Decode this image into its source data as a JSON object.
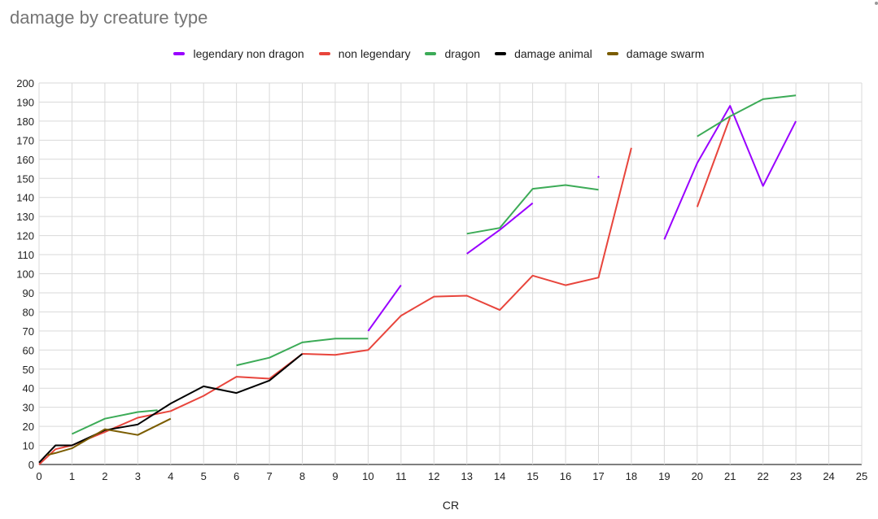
{
  "chart_data": {
    "type": "line",
    "title": "damage by creature type",
    "xlabel": "CR",
    "ylabel": "",
    "xlim": [
      0,
      25
    ],
    "ylim": [
      0,
      200
    ],
    "x_ticks": [
      0,
      1,
      2,
      3,
      4,
      5,
      6,
      7,
      8,
      9,
      10,
      11,
      12,
      13,
      14,
      15,
      16,
      17,
      18,
      19,
      20,
      21,
      22,
      23,
      24,
      25
    ],
    "y_ticks": [
      0,
      10,
      20,
      30,
      40,
      50,
      60,
      70,
      80,
      90,
      100,
      110,
      120,
      130,
      140,
      150,
      160,
      170,
      180,
      190,
      200
    ],
    "grid": true,
    "legend_position": "top",
    "series": [
      {
        "name": "legendary non dragon",
        "color": "#9900ff",
        "segments": [
          [
            [
              10,
              70
            ],
            [
              11,
              94
            ]
          ],
          [
            [
              13,
              110.5
            ],
            [
              14,
              123
            ],
            [
              15,
              137
            ]
          ],
          [
            [
              16.98,
              151
            ],
            [
              17.02,
              150.5
            ]
          ],
          [
            [
              19,
              118
            ],
            [
              20,
              158
            ],
            [
              21,
              188
            ],
            [
              22,
              146
            ],
            [
              23,
              180
            ]
          ]
        ]
      },
      {
        "name": "non legendary",
        "color": "#e8453c",
        "segments": [
          [
            [
              0,
              0
            ],
            [
              0.5,
              8
            ],
            [
              1,
              10
            ],
            [
              2,
              17
            ],
            [
              3,
              24.5
            ],
            [
              4,
              28
            ],
            [
              5,
              36
            ],
            [
              6,
              46
            ],
            [
              7,
              45
            ],
            [
              8,
              58
            ],
            [
              9,
              57.5
            ],
            [
              10,
              60
            ],
            [
              11,
              78
            ],
            [
              12,
              88
            ],
            [
              13,
              88.5
            ],
            [
              14,
              81
            ],
            [
              15,
              99
            ],
            [
              16,
              94
            ],
            [
              17,
              98
            ],
            [
              18,
              166
            ]
          ],
          [
            [
              20,
              135
            ],
            [
              21,
              182
            ]
          ]
        ]
      },
      {
        "name": "dragon",
        "color": "#3cab57",
        "segments": [
          [
            [
              1,
              16
            ],
            [
              2,
              24
            ],
            [
              3,
              27.5
            ],
            [
              3.6,
              28.5
            ]
          ],
          [
            [
              6,
              52
            ],
            [
              7,
              56
            ],
            [
              8,
              64
            ],
            [
              9,
              66
            ],
            [
              10,
              66
            ]
          ],
          [
            [
              13,
              121
            ],
            [
              14,
              124
            ],
            [
              15,
              144.5
            ],
            [
              16,
              146.5
            ],
            [
              17,
              144
            ]
          ],
          [
            [
              20,
              172
            ],
            [
              21,
              182.5
            ],
            [
              22,
              191.5
            ],
            [
              23,
              193.5
            ]
          ]
        ]
      },
      {
        "name": "damage animal",
        "color": "#000000",
        "segments": [
          [
            [
              0,
              1
            ],
            [
              0.5,
              10
            ],
            [
              1,
              10
            ],
            [
              2,
              18
            ],
            [
              3,
              21
            ],
            [
              4,
              32
            ],
            [
              5,
              41
            ],
            [
              6,
              37.5
            ],
            [
              7,
              44
            ],
            [
              8,
              58
            ]
          ]
        ]
      },
      {
        "name": "damage swarm",
        "color": "#7a5c00",
        "segments": [
          [
            [
              0.25,
              5
            ],
            [
              0.5,
              6
            ],
            [
              1,
              8.5
            ],
            [
              2,
              18.5
            ],
            [
              3,
              15.5
            ],
            [
              4,
              24
            ]
          ]
        ]
      }
    ]
  }
}
